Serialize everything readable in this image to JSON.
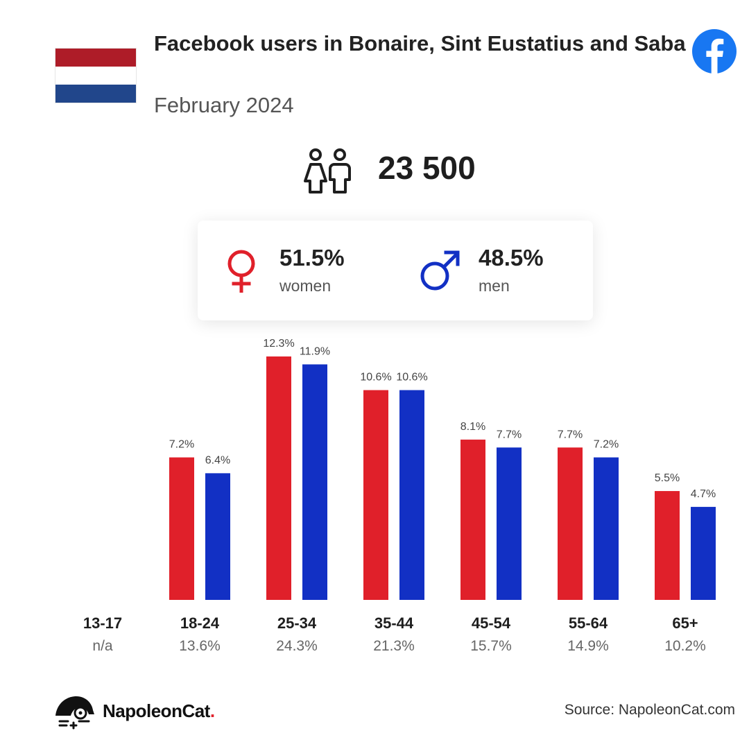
{
  "header": {
    "title": "Facebook users in Bonaire, Sint Eustatius and Saba",
    "subtitle": "February 2024",
    "flag_colors": [
      "#ae1c28",
      "#ffffff",
      "#21468b"
    ],
    "platform_icon": "facebook-icon"
  },
  "total": {
    "icon": "people-icon",
    "value": "23 500"
  },
  "gender": {
    "women": {
      "icon": "female-symbol-icon",
      "percent": "51.5%",
      "label": "women",
      "color": "#e0202a"
    },
    "men": {
      "icon": "male-symbol-icon",
      "percent": "48.5%",
      "label": "men",
      "color": "#1230c4"
    }
  },
  "chart_data": {
    "type": "bar",
    "categories": [
      "13-17",
      "18-24",
      "25-34",
      "35-44",
      "45-54",
      "55-64",
      "65+"
    ],
    "category_totals": [
      "n/a",
      "13.6%",
      "24.3%",
      "21.3%",
      "15.7%",
      "14.9%",
      "10.2%"
    ],
    "series": [
      {
        "values": [
          null,
          7.2,
          12.3,
          10.6,
          8.1,
          7.7,
          5.5
        ],
        "labels": [
          "",
          "7.2%",
          "12.3%",
          "10.6%",
          "8.1%",
          "7.7%",
          "5.5%"
        ],
        "color": "#e0202a"
      },
      {
        "values": [
          null,
          6.4,
          11.9,
          10.6,
          7.7,
          7.2,
          4.7
        ],
        "labels": [
          "",
          "6.4%",
          "11.9%",
          "10.6%",
          "7.7%",
          "7.2%",
          "4.7%"
        ],
        "color": "#1230c4"
      }
    ],
    "ylim": [
      0,
      12.3
    ],
    "grid": false,
    "legend": "none"
  },
  "footer": {
    "brand": "NapoleonCat",
    "brand_dot": ".",
    "source": "Source: NapoleonCat.com"
  }
}
